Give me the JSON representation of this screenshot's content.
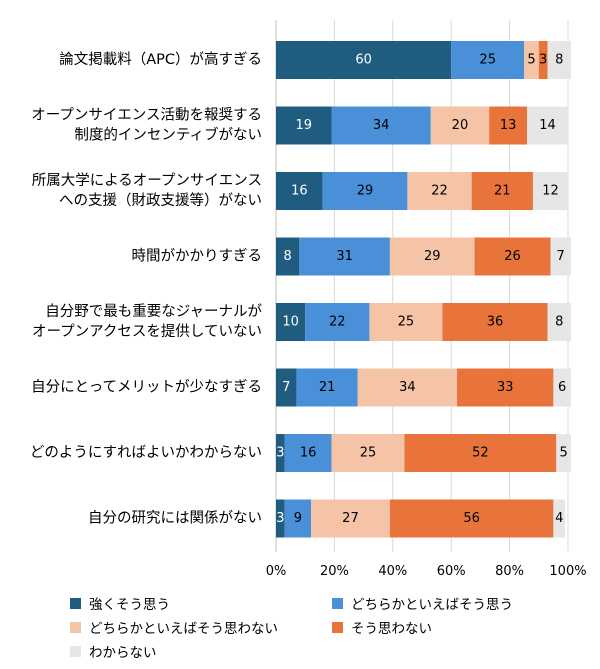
{
  "chart_data": {
    "type": "bar",
    "stacked": true,
    "orientation": "horizontal",
    "categories": [
      [
        "論文掲載料（APC）が高すぎる"
      ],
      [
        "オープンサイエンス活動を報奨する",
        "制度的インセンティブがない"
      ],
      [
        "所属大学によるオープンサイエンス",
        "への支援（財政支援等）がない"
      ],
      [
        "時間がかかりすぎる"
      ],
      [
        "自分野で最も重要なジャーナルが",
        "オープンアクセスを提供していない"
      ],
      [
        "自分にとってメリットが少なすぎる"
      ],
      [
        "どのようにすればよいかわからない"
      ],
      [
        "自分の研究には関係がない"
      ]
    ],
    "series": [
      {
        "name": "強くそう思う",
        "color": "#1f5c80",
        "label_color": "#ffffff",
        "values": [
          60,
          19,
          16,
          8,
          10,
          7,
          3,
          3
        ]
      },
      {
        "name": "どちらかといえばそう思う",
        "color": "#4a90d9",
        "label_color": "#000000",
        "values": [
          25,
          34,
          29,
          31,
          22,
          21,
          16,
          9
        ]
      },
      {
        "name": "どちらかといえばそう思わない",
        "color": "#f5c3a5",
        "label_color": "#000000",
        "values": [
          5,
          20,
          22,
          29,
          25,
          34,
          25,
          27
        ]
      },
      {
        "name": "そう思わない",
        "color": "#e8743b",
        "label_color": "#000000",
        "values": [
          3,
          13,
          21,
          26,
          36,
          33,
          52,
          56
        ]
      },
      {
        "name": "わからない",
        "color": "#e6e6e6",
        "label_color": "#000000",
        "values": [
          8,
          14,
          12,
          7,
          8,
          6,
          5,
          4
        ]
      }
    ],
    "xlim": [
      0,
      100
    ],
    "xticks": [
      "0%",
      "20%",
      "40%",
      "60%",
      "80%",
      "100%"
    ],
    "grid": true,
    "legend_position": "bottom"
  }
}
